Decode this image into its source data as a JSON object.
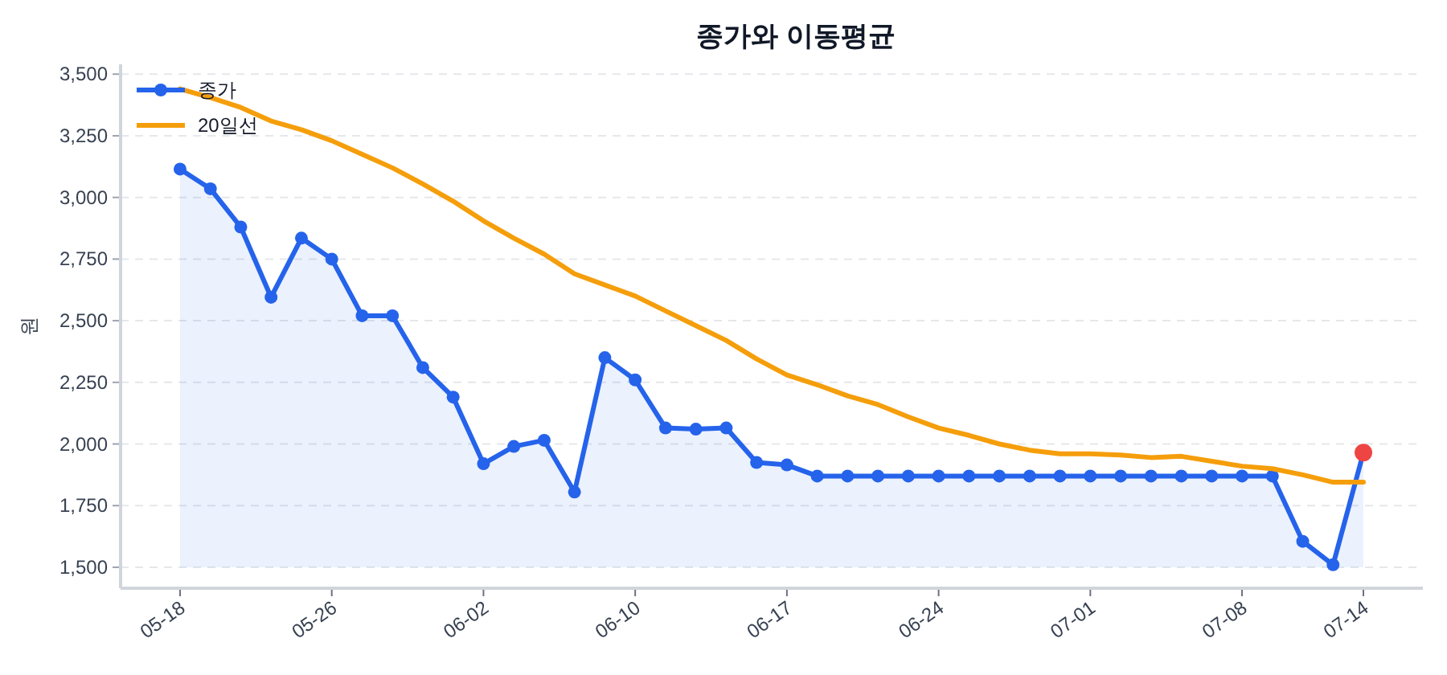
{
  "chart_data": {
    "type": "line",
    "title": "종가와 이동평균",
    "ylabel": "원",
    "categories": [
      "05-18",
      null,
      null,
      null,
      null,
      "05-26",
      null,
      null,
      null,
      null,
      "06-02",
      null,
      null,
      null,
      null,
      "06-10",
      null,
      null,
      null,
      null,
      "06-17",
      null,
      null,
      null,
      null,
      "06-24",
      null,
      null,
      null,
      null,
      "07-01",
      null,
      null,
      null,
      null,
      "07-08",
      null,
      null,
      null,
      "07-14"
    ],
    "series": [
      {
        "name": "종가",
        "type": "area",
        "marker": "circle",
        "color": "#2563eb",
        "colors": [
          "#2563eb",
          "#2563eb",
          "#2563eb",
          "#2563eb",
          "#2563eb",
          "#2563eb",
          "#2563eb",
          "#2563eb",
          "#2563eb",
          "#2563eb",
          "#2563eb",
          "#2563eb",
          "#2563eb",
          "#2563eb",
          "#2563eb",
          "#2563eb",
          "#2563eb",
          "#2563eb",
          "#2563eb",
          "#2563eb",
          "#2563eb",
          "#2563eb",
          "#2563eb",
          "#2563eb",
          "#2563eb",
          "#2563eb",
          "#2563eb",
          "#2563eb",
          "#2563eb",
          "#2563eb",
          "#2563eb",
          "#2563eb",
          "#2563eb",
          "#2563eb",
          "#2563eb",
          "#2563eb",
          "#2563eb",
          "#2563eb",
          "#2563eb",
          "#ef4444"
        ],
        "values": [
          3115,
          3035,
          2880,
          2595,
          2835,
          2750,
          2520,
          2520,
          2310,
          2190,
          1920,
          1990,
          2015,
          1805,
          2350,
          2260,
          2065,
          2060,
          2065,
          1925,
          1915,
          1870,
          1870,
          1870,
          1870,
          1870,
          1870,
          1870,
          1870,
          1870,
          1870,
          1870,
          1870,
          1870,
          1870,
          1870,
          1870,
          1605,
          1510,
          1965
        ]
      },
      {
        "name": "20일선",
        "type": "line",
        "marker": "none",
        "color": "#f59e0b",
        "values": [
          3440,
          3405,
          3365,
          3310,
          3275,
          3230,
          3175,
          3120,
          3055,
          2985,
          2905,
          2835,
          2770,
          2690,
          2645,
          2600,
          2540,
          2480,
          2420,
          2345,
          2280,
          2240,
          2195,
          2160,
          2110,
          2065,
          2035,
          2000,
          1975,
          1960,
          1960,
          1955,
          1945,
          1950,
          1930,
          1910,
          1900,
          1875,
          1845,
          1845
        ]
      }
    ],
    "ylim": [
      1415,
      3540
    ],
    "yticks": [
      {
        "value": 1500,
        "label": "1,500"
      },
      {
        "value": 1750,
        "label": "1,750"
      },
      {
        "value": 2000,
        "label": "2,000"
      },
      {
        "value": 2250,
        "label": "2,250"
      },
      {
        "value": 2500,
        "label": "2,500"
      },
      {
        "value": 2750,
        "label": "2,750"
      },
      {
        "value": 3000,
        "label": "3,000"
      },
      {
        "value": 3250,
        "label": "3,250"
      },
      {
        "value": 3500,
        "label": "3,500"
      }
    ],
    "grid": "y",
    "legend": "top left",
    "line_style": "solid"
  }
}
